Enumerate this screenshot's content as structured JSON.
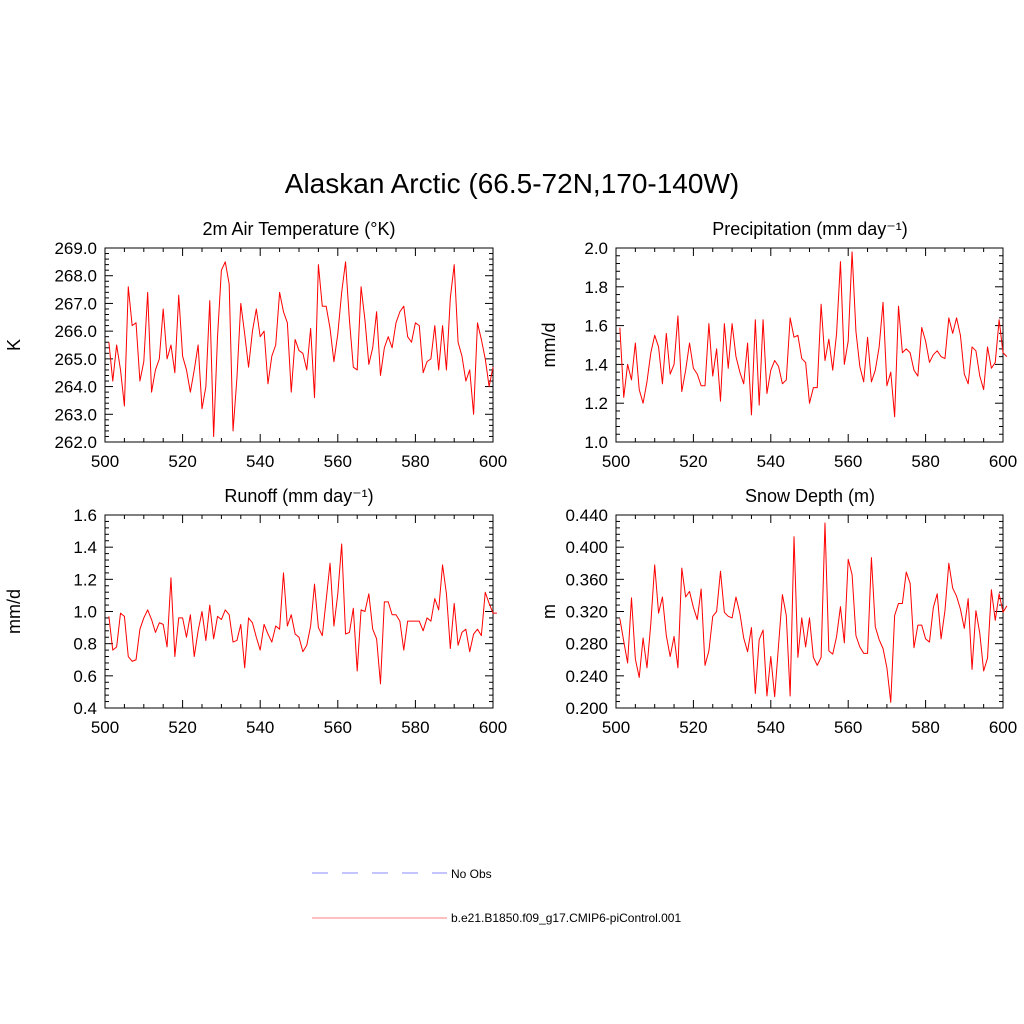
{
  "title": "Alaskan Arctic (66.5-72N,170-140W)",
  "colors": {
    "series": "#ff0000",
    "obs": "#a0a0ff",
    "axis": "#000000"
  },
  "legend": [
    {
      "label": "No Obs",
      "style": "dashed",
      "color": "#a0a0ff"
    },
    {
      "label": "b.e21.B1850.f09_g17.CMIP6-piControl.001",
      "style": "solid",
      "color": "#ff9999"
    }
  ],
  "chart_data": [
    {
      "type": "line",
      "title": "2m Air Temperature",
      "title_unit": "(°K)",
      "ylabel": "K",
      "xlabel": "",
      "xlim": [
        500,
        600
      ],
      "ylim": [
        262.0,
        269.0
      ],
      "xticks": [
        "500",
        "520",
        "540",
        "560",
        "580",
        "600"
      ],
      "yticks": [
        "262.0",
        "263.0",
        "264.0",
        "265.0",
        "266.0",
        "267.0",
        "268.0",
        "269.0"
      ],
      "series": [
        {
          "x_start": 501,
          "values": [
            265.6,
            264.2,
            265.5,
            264.6,
            263.3,
            267.6,
            266.2,
            266.3,
            264.2,
            264.9,
            267.4,
            263.8,
            264.6,
            265.0,
            266.8,
            265.0,
            265.5,
            264.5,
            267.3,
            265.1,
            264.6,
            263.8,
            264.6,
            265.5,
            263.2,
            264.0,
            267.1,
            262.2,
            265.8,
            268.2,
            268.5,
            267.7,
            262.4,
            264.3,
            267.0,
            265.9,
            264.7,
            266.0,
            266.8,
            265.8,
            266.0,
            264.1,
            265.1,
            265.5,
            267.4,
            266.7,
            266.3,
            263.8,
            265.7,
            265.3,
            265.2,
            264.6,
            266.1,
            263.6,
            268.4,
            266.9,
            266.9,
            266.1,
            264.9,
            265.9,
            267.4,
            268.5,
            266.4,
            264.7,
            264.6,
            267.6,
            266.4,
            264.8,
            265.4,
            266.7,
            264.4,
            265.4,
            265.8,
            265.4,
            266.3,
            266.7,
            266.9,
            265.8,
            265.6,
            266.3,
            266.2,
            264.5,
            264.9,
            265.0,
            266.2,
            264.6,
            266.2,
            264.6,
            267.2,
            268.4,
            265.6,
            265.1,
            264.2,
            264.6,
            263.0,
            266.3,
            265.7,
            265.0,
            264.0,
            264.7
          ]
        }
      ]
    },
    {
      "type": "line",
      "title": "Precipitation",
      "title_unit": "(mm day⁻¹)",
      "ylabel": "mm/d",
      "xlabel": "",
      "xlim": [
        500,
        600
      ],
      "ylim": [
        1.0,
        2.0
      ],
      "xticks": [
        "500",
        "520",
        "540",
        "560",
        "580",
        "600"
      ],
      "yticks": [
        "1.0",
        "1.2",
        "1.4",
        "1.6",
        "1.8",
        "2.0"
      ],
      "series": [
        {
          "x_start": 501,
          "values": [
            1.59,
            1.23,
            1.4,
            1.32,
            1.51,
            1.27,
            1.2,
            1.31,
            1.46,
            1.55,
            1.49,
            1.3,
            1.56,
            1.35,
            1.4,
            1.65,
            1.26,
            1.37,
            1.51,
            1.38,
            1.35,
            1.29,
            1.29,
            1.61,
            1.34,
            1.48,
            1.21,
            1.61,
            1.38,
            1.61,
            1.44,
            1.36,
            1.3,
            1.51,
            1.14,
            1.63,
            1.19,
            1.63,
            1.25,
            1.37,
            1.42,
            1.39,
            1.3,
            1.32,
            1.64,
            1.54,
            1.55,
            1.43,
            1.41,
            1.2,
            1.28,
            1.28,
            1.71,
            1.42,
            1.53,
            1.37,
            1.56,
            1.93,
            1.4,
            1.52,
            1.98,
            1.57,
            1.39,
            1.31,
            1.54,
            1.31,
            1.37,
            1.49,
            1.72,
            1.29,
            1.36,
            1.13,
            1.7,
            1.46,
            1.48,
            1.46,
            1.37,
            1.34,
            1.59,
            1.52,
            1.41,
            1.45,
            1.47,
            1.44,
            1.43,
            1.64,
            1.56,
            1.64,
            1.55,
            1.35,
            1.3,
            1.49,
            1.47,
            1.34,
            1.27,
            1.49,
            1.38,
            1.41,
            1.63,
            1.46,
            1.44
          ]
        }
      ]
    },
    {
      "type": "line",
      "title": "Runoff",
      "title_unit": "(mm day⁻¹)",
      "ylabel": "mm/d",
      "xlabel": "",
      "xlim": [
        500,
        600
      ],
      "ylim": [
        0.4,
        1.6
      ],
      "xticks": [
        "500",
        "520",
        "540",
        "560",
        "580",
        "600"
      ],
      "yticks": [
        "0.4",
        "0.6",
        "0.8",
        "1.0",
        "1.2",
        "1.4",
        "1.6"
      ],
      "series": [
        {
          "x_start": 501,
          "values": [
            0.97,
            0.76,
            0.78,
            0.99,
            0.97,
            0.72,
            0.69,
            0.7,
            0.89,
            0.96,
            1.01,
            0.95,
            0.87,
            0.93,
            0.92,
            0.78,
            1.21,
            0.72,
            0.96,
            0.96,
            0.84,
            0.98,
            0.72,
            0.88,
            1.0,
            0.82,
            1.04,
            0.83,
            0.97,
            0.95,
            1.01,
            0.98,
            0.81,
            0.82,
            0.92,
            0.65,
            0.96,
            0.93,
            0.84,
            0.76,
            0.92,
            0.86,
            0.81,
            0.91,
            0.89,
            1.24,
            0.91,
            0.98,
            0.86,
            0.84,
            0.75,
            0.79,
            0.91,
            1.17,
            0.9,
            0.85,
            1.07,
            1.3,
            0.91,
            1.11,
            1.42,
            0.86,
            0.87,
            1.02,
            0.63,
            1.01,
            1.0,
            1.11,
            0.89,
            0.83,
            0.55,
            1.06,
            1.06,
            0.98,
            0.98,
            0.94,
            0.76,
            0.94,
            0.94,
            0.94,
            0.94,
            0.88,
            0.96,
            0.94,
            1.08,
            1.01,
            1.29,
            1.11,
            0.77,
            1.05,
            0.79,
            0.87,
            0.89,
            0.75,
            0.86,
            0.89,
            0.85,
            1.12,
            1.05,
            0.99,
            0.99
          ]
        }
      ]
    },
    {
      "type": "line",
      "title": "Snow Depth (m)",
      "title_unit": "",
      "ylabel": "m",
      "xlabel": "",
      "xlim": [
        500,
        600
      ],
      "ylim": [
        0.2,
        0.44
      ],
      "xticks": [
        "500",
        "520",
        "540",
        "560",
        "580",
        "600"
      ],
      "yticks": [
        "0.200",
        "0.240",
        "0.280",
        "0.320",
        "0.360",
        "0.400",
        "0.440"
      ],
      "series": [
        {
          "x_start": 501,
          "values": [
            0.311,
            0.283,
            0.256,
            0.337,
            0.261,
            0.238,
            0.287,
            0.25,
            0.305,
            0.378,
            0.318,
            0.338,
            0.29,
            0.264,
            0.289,
            0.25,
            0.374,
            0.338,
            0.345,
            0.325,
            0.31,
            0.348,
            0.253,
            0.271,
            0.314,
            0.32,
            0.37,
            0.319,
            0.314,
            0.312,
            0.338,
            0.318,
            0.287,
            0.27,
            0.3,
            0.218,
            0.285,
            0.297,
            0.215,
            0.264,
            0.214,
            0.278,
            0.341,
            0.315,
            0.215,
            0.413,
            0.263,
            0.312,
            0.276,
            0.312,
            0.263,
            0.253,
            0.263,
            0.43,
            0.271,
            0.267,
            0.289,
            0.326,
            0.281,
            0.385,
            0.366,
            0.29,
            0.276,
            0.268,
            0.268,
            0.387,
            0.301,
            0.285,
            0.274,
            0.25,
            0.207,
            0.315,
            0.33,
            0.33,
            0.369,
            0.355,
            0.275,
            0.303,
            0.303,
            0.286,
            0.282,
            0.325,
            0.342,
            0.286,
            0.321,
            0.38,
            0.349,
            0.339,
            0.323,
            0.299,
            0.336,
            0.248,
            0.321,
            0.293,
            0.246,
            0.262,
            0.347,
            0.309,
            0.342,
            0.319,
            0.327
          ]
        }
      ]
    }
  ]
}
